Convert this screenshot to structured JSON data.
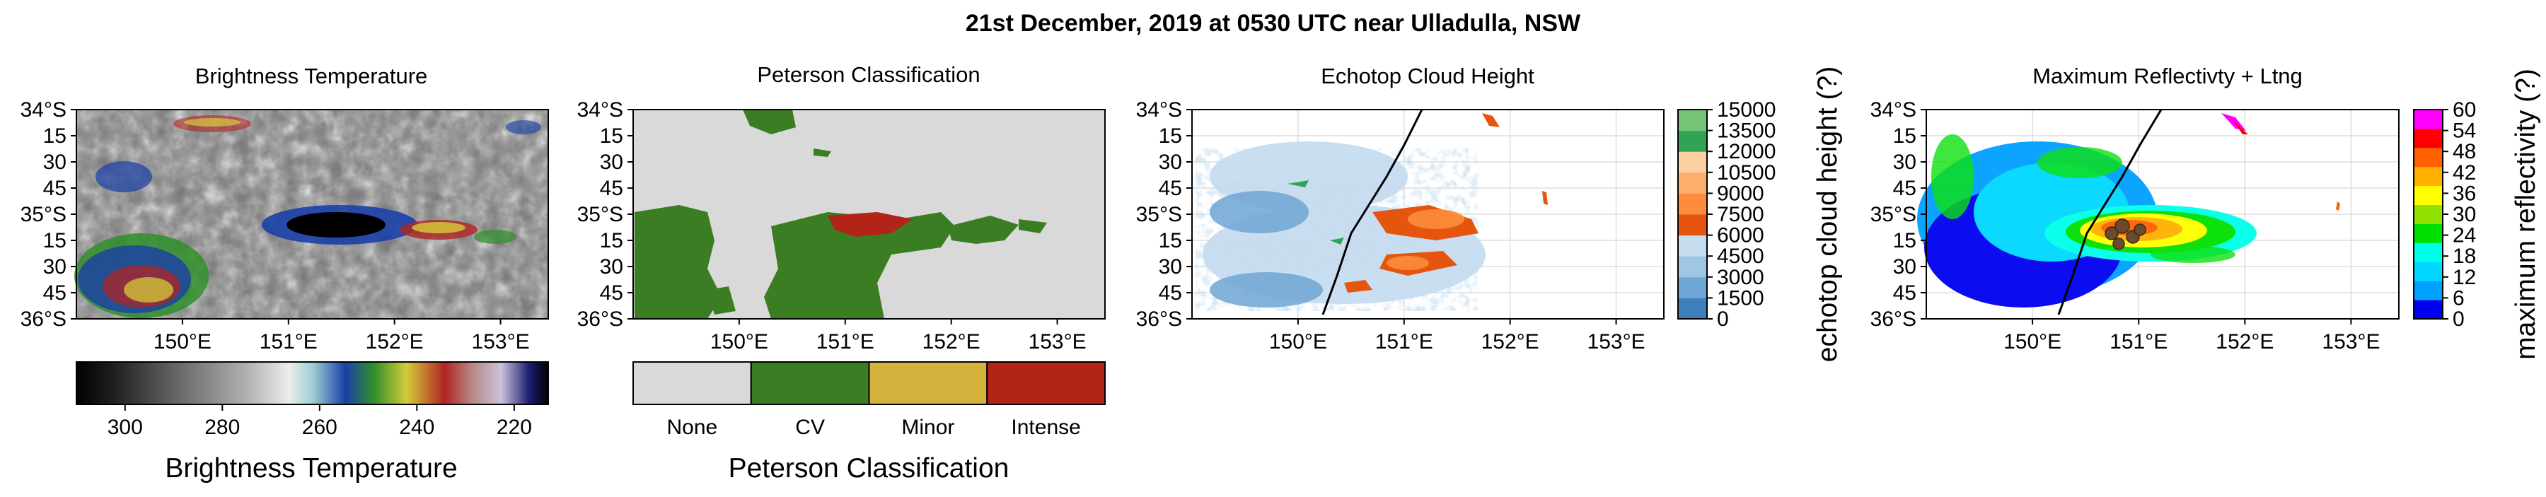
{
  "figure": {
    "title": "21st December, 2019 at 0530 UTC near Ulladulla, NSW"
  },
  "lat_ticks": [
    "34°S",
    "15",
    "30",
    "45",
    "35°S",
    "15",
    "30",
    "45",
    "36°S"
  ],
  "lon_ticks": [
    "150°E",
    "151°E",
    "152°E",
    "153°E"
  ],
  "chart_data": [
    {
      "type": "heatmap",
      "title": "Brightness Temperature",
      "colorbar": {
        "label": "Brightness Temperature",
        "orientation": "horizontal",
        "range": [
          310,
          213
        ],
        "ticks": [
          "300",
          "280",
          "260",
          "240",
          "220"
        ],
        "tick_values": [
          300,
          280,
          260,
          240,
          220
        ]
      },
      "extent": {
        "lon": [
          149.0,
          153.45
        ],
        "lat": [
          -36.0,
          -34.0
        ]
      }
    },
    {
      "type": "heatmap",
      "title": "Peterson Classification",
      "colorbar": {
        "label": "Peterson Classification",
        "orientation": "horizontal",
        "categories": [
          "None",
          "CV",
          "Minor",
          "Intense"
        ],
        "colors": [
          "#d9d9d9",
          "#3b7d23",
          "#d4b23c",
          "#b22418"
        ]
      },
      "extent": {
        "lon": [
          149.0,
          153.45
        ],
        "lat": [
          -36.0,
          -34.0
        ]
      }
    },
    {
      "type": "heatmap",
      "title": "Echotop Cloud Height",
      "colorbar": {
        "label": "echotop cloud height (?)",
        "orientation": "vertical",
        "ticks": [
          "0",
          "1500",
          "3000",
          "4500",
          "6000",
          "7500",
          "9000",
          "10500",
          "12000",
          "13500",
          "15000"
        ],
        "tick_values": [
          0,
          1500,
          3000,
          4500,
          6000,
          7500,
          9000,
          10500,
          12000,
          13500,
          15000
        ],
        "colors": [
          "#3d7fb8",
          "#6ea6d4",
          "#9ec6e5",
          "#c6dcef",
          "#e6550d",
          "#fd8d3c",
          "#fdae6b",
          "#fdd0a2",
          "#31a354",
          "#74c476"
        ]
      },
      "extent": {
        "lon": [
          149.0,
          153.45
        ],
        "lat": [
          -36.0,
          -34.0
        ]
      }
    },
    {
      "type": "heatmap",
      "title": "Maximum Reflectivty + Ltng",
      "colorbar": {
        "label": "maximum reflectivity (?)",
        "orientation": "vertical",
        "ticks": [
          "0",
          "6",
          "12",
          "18",
          "24",
          "30",
          "36",
          "42",
          "48",
          "54",
          "60"
        ],
        "tick_values": [
          0,
          6,
          12,
          18,
          24,
          30,
          36,
          42,
          48,
          54,
          60
        ],
        "colors": [
          "#0000f0",
          "#00a0ff",
          "#00d8ff",
          "#00ffe8",
          "#00e000",
          "#90e000",
          "#ffff00",
          "#ffb000",
          "#ff6000",
          "#ff0000",
          "#ff00ff"
        ]
      },
      "extent": {
        "lon": [
          149.0,
          153.45
        ],
        "lat": [
          -36.0,
          -34.0
        ]
      }
    }
  ]
}
